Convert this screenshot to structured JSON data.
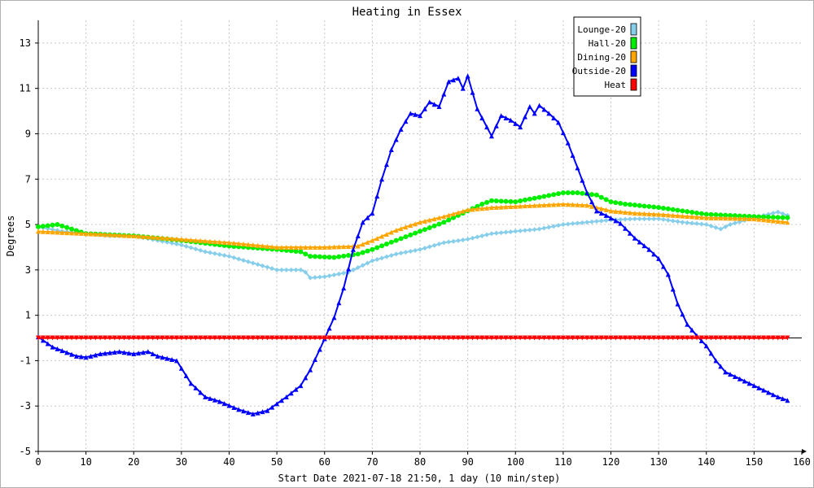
{
  "chart_data": {
    "type": "line",
    "title": "Heating in Essex",
    "xlabel": "Start Date 2021-07-18 21:50, 1 day (10 min/step)",
    "ylabel": "Degrees",
    "xlim": [
      0,
      160
    ],
    "ylim": [
      -5,
      14
    ],
    "xticks": [
      0,
      10,
      20,
      30,
      40,
      50,
      60,
      70,
      80,
      90,
      100,
      110,
      120,
      130,
      140,
      150,
      160
    ],
    "yticks": [
      -5,
      -3,
      -1,
      1,
      3,
      5,
      7,
      9,
      11,
      13
    ],
    "grid": true,
    "legend_position": "top-right",
    "series": [
      {
        "name": "Lounge-20",
        "color": "#87ceeb",
        "marker": "diamond",
        "points": [
          [
            0,
            4.9
          ],
          [
            5,
            4.7
          ],
          [
            10,
            4.6
          ],
          [
            15,
            4.5
          ],
          [
            20,
            4.5
          ],
          [
            25,
            4.3
          ],
          [
            30,
            4.1
          ],
          [
            35,
            3.8
          ],
          [
            40,
            3.6
          ],
          [
            45,
            3.3
          ],
          [
            50,
            3.0
          ],
          [
            55,
            3.0
          ],
          [
            56,
            2.9
          ],
          [
            57,
            2.65
          ],
          [
            60,
            2.7
          ],
          [
            65,
            2.9
          ],
          [
            70,
            3.4
          ],
          [
            75,
            3.7
          ],
          [
            80,
            3.9
          ],
          [
            85,
            4.2
          ],
          [
            90,
            4.35
          ],
          [
            95,
            4.6
          ],
          [
            100,
            4.7
          ],
          [
            105,
            4.8
          ],
          [
            110,
            5.0
          ],
          [
            115,
            5.1
          ],
          [
            120,
            5.2
          ],
          [
            125,
            5.25
          ],
          [
            130,
            5.25
          ],
          [
            135,
            5.1
          ],
          [
            140,
            5.0
          ],
          [
            143,
            4.8
          ],
          [
            145,
            5.0
          ],
          [
            150,
            5.3
          ],
          [
            155,
            5.55
          ],
          [
            157,
            5.4
          ]
        ]
      },
      {
        "name": "Hall-20",
        "color": "#00ee00",
        "marker": "circle",
        "points": [
          [
            0,
            4.9
          ],
          [
            4,
            5.0
          ],
          [
            10,
            4.6
          ],
          [
            20,
            4.5
          ],
          [
            30,
            4.3
          ],
          [
            40,
            4.05
          ],
          [
            50,
            3.9
          ],
          [
            55,
            3.8
          ],
          [
            57,
            3.6
          ],
          [
            62,
            3.55
          ],
          [
            67,
            3.7
          ],
          [
            70,
            3.9
          ],
          [
            75,
            4.3
          ],
          [
            80,
            4.7
          ],
          [
            85,
            5.1
          ],
          [
            90,
            5.6
          ],
          [
            93,
            5.9
          ],
          [
            95,
            6.05
          ],
          [
            100,
            6.0
          ],
          [
            105,
            6.2
          ],
          [
            110,
            6.4
          ],
          [
            113,
            6.4
          ],
          [
            117,
            6.3
          ],
          [
            120,
            6.0
          ],
          [
            123,
            5.9
          ],
          [
            130,
            5.75
          ],
          [
            140,
            5.45
          ],
          [
            150,
            5.35
          ],
          [
            157,
            5.3
          ]
        ]
      },
      {
        "name": "Dining-20",
        "color": "#ffa500",
        "marker": "triangle-up",
        "points": [
          [
            0,
            4.7
          ],
          [
            10,
            4.6
          ],
          [
            20,
            4.5
          ],
          [
            30,
            4.35
          ],
          [
            40,
            4.2
          ],
          [
            50,
            4.0
          ],
          [
            60,
            4.0
          ],
          [
            67,
            4.05
          ],
          [
            70,
            4.3
          ],
          [
            75,
            4.75
          ],
          [
            80,
            5.1
          ],
          [
            85,
            5.35
          ],
          [
            90,
            5.65
          ],
          [
            95,
            5.75
          ],
          [
            100,
            5.8
          ],
          [
            105,
            5.85
          ],
          [
            110,
            5.9
          ],
          [
            115,
            5.85
          ],
          [
            120,
            5.6
          ],
          [
            125,
            5.5
          ],
          [
            130,
            5.45
          ],
          [
            140,
            5.3
          ],
          [
            150,
            5.25
          ],
          [
            157,
            5.1
          ]
        ]
      },
      {
        "name": "Outside-20",
        "color": "#0000ff",
        "marker": "triangle-up",
        "points": [
          [
            0,
            0.05
          ],
          [
            3,
            -0.4
          ],
          [
            8,
            -0.8
          ],
          [
            10,
            -0.85
          ],
          [
            13,
            -0.7
          ],
          [
            17,
            -0.6
          ],
          [
            20,
            -0.7
          ],
          [
            23,
            -0.6
          ],
          [
            25,
            -0.8
          ],
          [
            29,
            -1.0
          ],
          [
            32,
            -2.0
          ],
          [
            35,
            -2.6
          ],
          [
            38,
            -2.8
          ],
          [
            42,
            -3.15
          ],
          [
            45,
            -3.35
          ],
          [
            48,
            -3.2
          ],
          [
            52,
            -2.6
          ],
          [
            55,
            -2.1
          ],
          [
            57,
            -1.4
          ],
          [
            59,
            -0.5
          ],
          [
            62,
            0.9
          ],
          [
            64,
            2.2
          ],
          [
            66,
            3.9
          ],
          [
            68,
            5.1
          ],
          [
            70,
            5.5
          ],
          [
            72,
            7.0
          ],
          [
            74,
            8.3
          ],
          [
            76,
            9.2
          ],
          [
            78,
            9.9
          ],
          [
            80,
            9.8
          ],
          [
            82,
            10.4
          ],
          [
            84,
            10.2
          ],
          [
            86,
            11.3
          ],
          [
            88,
            11.45
          ],
          [
            89,
            11.0
          ],
          [
            90,
            11.55
          ],
          [
            92,
            10.1
          ],
          [
            95,
            8.9
          ],
          [
            97,
            9.8
          ],
          [
            99,
            9.6
          ],
          [
            101,
            9.3
          ],
          [
            103,
            10.2
          ],
          [
            104,
            9.9
          ],
          [
            105,
            10.25
          ],
          [
            107,
            9.9
          ],
          [
            109,
            9.5
          ],
          [
            111,
            8.6
          ],
          [
            113,
            7.5
          ],
          [
            115,
            6.4
          ],
          [
            117,
            5.6
          ],
          [
            119,
            5.4
          ],
          [
            122,
            5.05
          ],
          [
            125,
            4.4
          ],
          [
            128,
            3.9
          ],
          [
            130,
            3.5
          ],
          [
            132,
            2.8
          ],
          [
            134,
            1.5
          ],
          [
            136,
            0.6
          ],
          [
            138,
            0.1
          ],
          [
            140,
            -0.35
          ],
          [
            142,
            -1.0
          ],
          [
            144,
            -1.5
          ],
          [
            147,
            -1.8
          ],
          [
            150,
            -2.1
          ],
          [
            153,
            -2.4
          ],
          [
            155,
            -2.6
          ],
          [
            157,
            -2.75
          ]
        ]
      },
      {
        "name": "Heat",
        "color": "#ff0000",
        "marker": "triangle-down",
        "points": [
          [
            0,
            0
          ],
          [
            157,
            0
          ]
        ]
      }
    ]
  }
}
